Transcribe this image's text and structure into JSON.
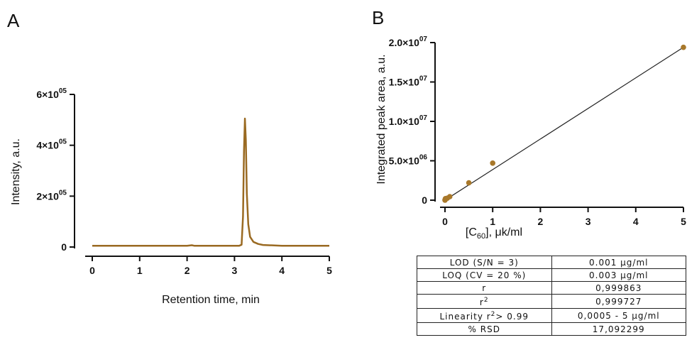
{
  "panels": {
    "a": {
      "letter": "A"
    },
    "b": {
      "letter": "B"
    }
  },
  "chart_data": [
    {
      "type": "line",
      "panel": "A",
      "xlabel": "Retention time, min",
      "ylabel": "Intensity, a.u.",
      "xlim": [
        0,
        5
      ],
      "ylim": [
        0,
        600000
      ],
      "x_ticks": [
        0,
        1,
        2,
        3,
        4,
        5
      ],
      "x_tick_labels": [
        "0",
        "1",
        "2",
        "3",
        "4",
        "5"
      ],
      "y_ticks": [
        0,
        200000,
        400000,
        600000
      ],
      "y_tick_labels": [
        {
          "mantissa": "0",
          "exp": ""
        },
        {
          "mantissa": "2×10",
          "exp": "05"
        },
        {
          "mantissa": "4×10",
          "exp": "05"
        },
        {
          "mantissa": "6×10",
          "exp": "05"
        }
      ],
      "series": [
        {
          "color": "#9a6a22",
          "x": [
            0,
            0.5,
            1.0,
            1.5,
            2.0,
            2.1,
            2.15,
            2.5,
            3.0,
            3.1,
            3.15,
            3.18,
            3.2,
            3.22,
            3.24,
            3.26,
            3.29,
            3.33,
            3.4,
            3.5,
            3.6,
            4.0,
            4.5,
            5.0
          ],
          "y": [
            5000,
            5000,
            5000,
            5000,
            5000,
            7000,
            5000,
            5000,
            5000,
            5000,
            9000,
            120000,
            380000,
            505000,
            420000,
            210000,
            90000,
            40000,
            20000,
            12000,
            8000,
            5000,
            5000,
            5000
          ]
        }
      ]
    },
    {
      "type": "scatter",
      "panel": "B",
      "xlabel_main": "[C",
      "xlabel_sub": "60",
      "xlabel_rest": "], μk/ml",
      "ylabel": "Integrated peak area, a.u.",
      "xlim": [
        0,
        5
      ],
      "ylim": [
        0,
        20000000
      ],
      "x_ticks": [
        0,
        1,
        2,
        3,
        4,
        5
      ],
      "x_tick_labels": [
        "0",
        "1",
        "2",
        "3",
        "4",
        "5"
      ],
      "y_ticks": [
        0,
        5000000,
        10000000,
        15000000,
        20000000
      ],
      "y_tick_labels": [
        {
          "mantissa": "0",
          "exp": ""
        },
        {
          "mantissa": "5.0×10",
          "exp": "06"
        },
        {
          "mantissa": "1.0×10",
          "exp": "07"
        },
        {
          "mantissa": "1.5×10",
          "exp": "07"
        },
        {
          "mantissa": "2.0×10",
          "exp": "07"
        }
      ],
      "series": [
        {
          "color": "#a8782a",
          "x": [
            0.0005,
            0.001,
            0.005,
            0.01,
            0.05,
            0.1,
            0.5,
            1.0,
            5.0
          ],
          "y": [
            10000,
            20000,
            100000,
            200000,
            250000,
            450000,
            2200000,
            4700000,
            19400000
          ]
        }
      ],
      "fit_line": {
        "x": [
          0,
          5
        ],
        "y": [
          -300000,
          19400000
        ],
        "color": "#222222"
      }
    }
  ],
  "table": {
    "rows": [
      {
        "label": "LOD (S/N = 3)",
        "value": "0.001 μg/ml"
      },
      {
        "label": "LOQ (CV = 20 %)",
        "value": "0.003 μg/ml"
      },
      {
        "label": "r",
        "value": "0,999863"
      },
      {
        "label": "r",
        "label_sup": "2",
        "value": "0,999727"
      },
      {
        "label": "Linearity r",
        "label_sup": "2",
        "label_rest": "> 0.99",
        "value": "0,0005 - 5 μg/ml"
      },
      {
        "label": "% RSD",
        "value": "17,092299"
      }
    ]
  }
}
